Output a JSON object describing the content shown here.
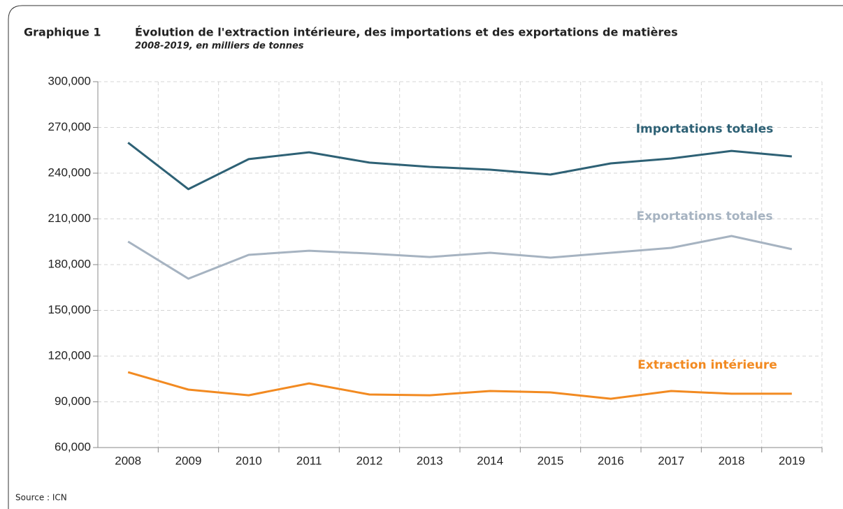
{
  "chart_data": {
    "type": "line",
    "label": "Graphique 1",
    "title": "Évolution de l'extraction intérieure, des importations et des exportations de matières",
    "subtitle": "2008-2019, en milliers de tonnes",
    "source": "Source : ICN",
    "categories": [
      "2008",
      "2009",
      "2010",
      "2011",
      "2012",
      "2013",
      "2014",
      "2015",
      "2016",
      "2017",
      "2018",
      "2019"
    ],
    "series": [
      {
        "name": "Importations totales",
        "color": "#2e6175",
        "values": [
          260000,
          229500,
          249200,
          253700,
          246900,
          244100,
          242300,
          239100,
          246400,
          249600,
          254600,
          251000
        ]
      },
      {
        "name": "Exportations totales",
        "color": "#a6b3c1",
        "values": [
          195100,
          170800,
          186400,
          189100,
          187300,
          185000,
          187800,
          184600,
          187800,
          191000,
          198800,
          190100
        ]
      },
      {
        "name": "Extraction intérieure",
        "color": "#f28a21",
        "values": [
          109400,
          98000,
          94300,
          102100,
          94800,
          94300,
          97100,
          96200,
          92000,
          97100,
          95300,
          95300
        ]
      }
    ],
    "ylim": [
      60000,
      300000
    ],
    "yticks": [
      {
        "value": 60000,
        "label": "60,000"
      },
      {
        "value": 90000,
        "label": "90,000"
      },
      {
        "value": 120000,
        "label": "120,000"
      },
      {
        "value": 150000,
        "label": "150,000"
      },
      {
        "value": 180000,
        "label": "180,000"
      },
      {
        "value": 210000,
        "label": "210,000"
      },
      {
        "value": 240000,
        "label": "240,000"
      },
      {
        "value": 270000,
        "label": "270,000"
      },
      {
        "value": 300000,
        "label": "300,000"
      }
    ],
    "grid": true
  }
}
